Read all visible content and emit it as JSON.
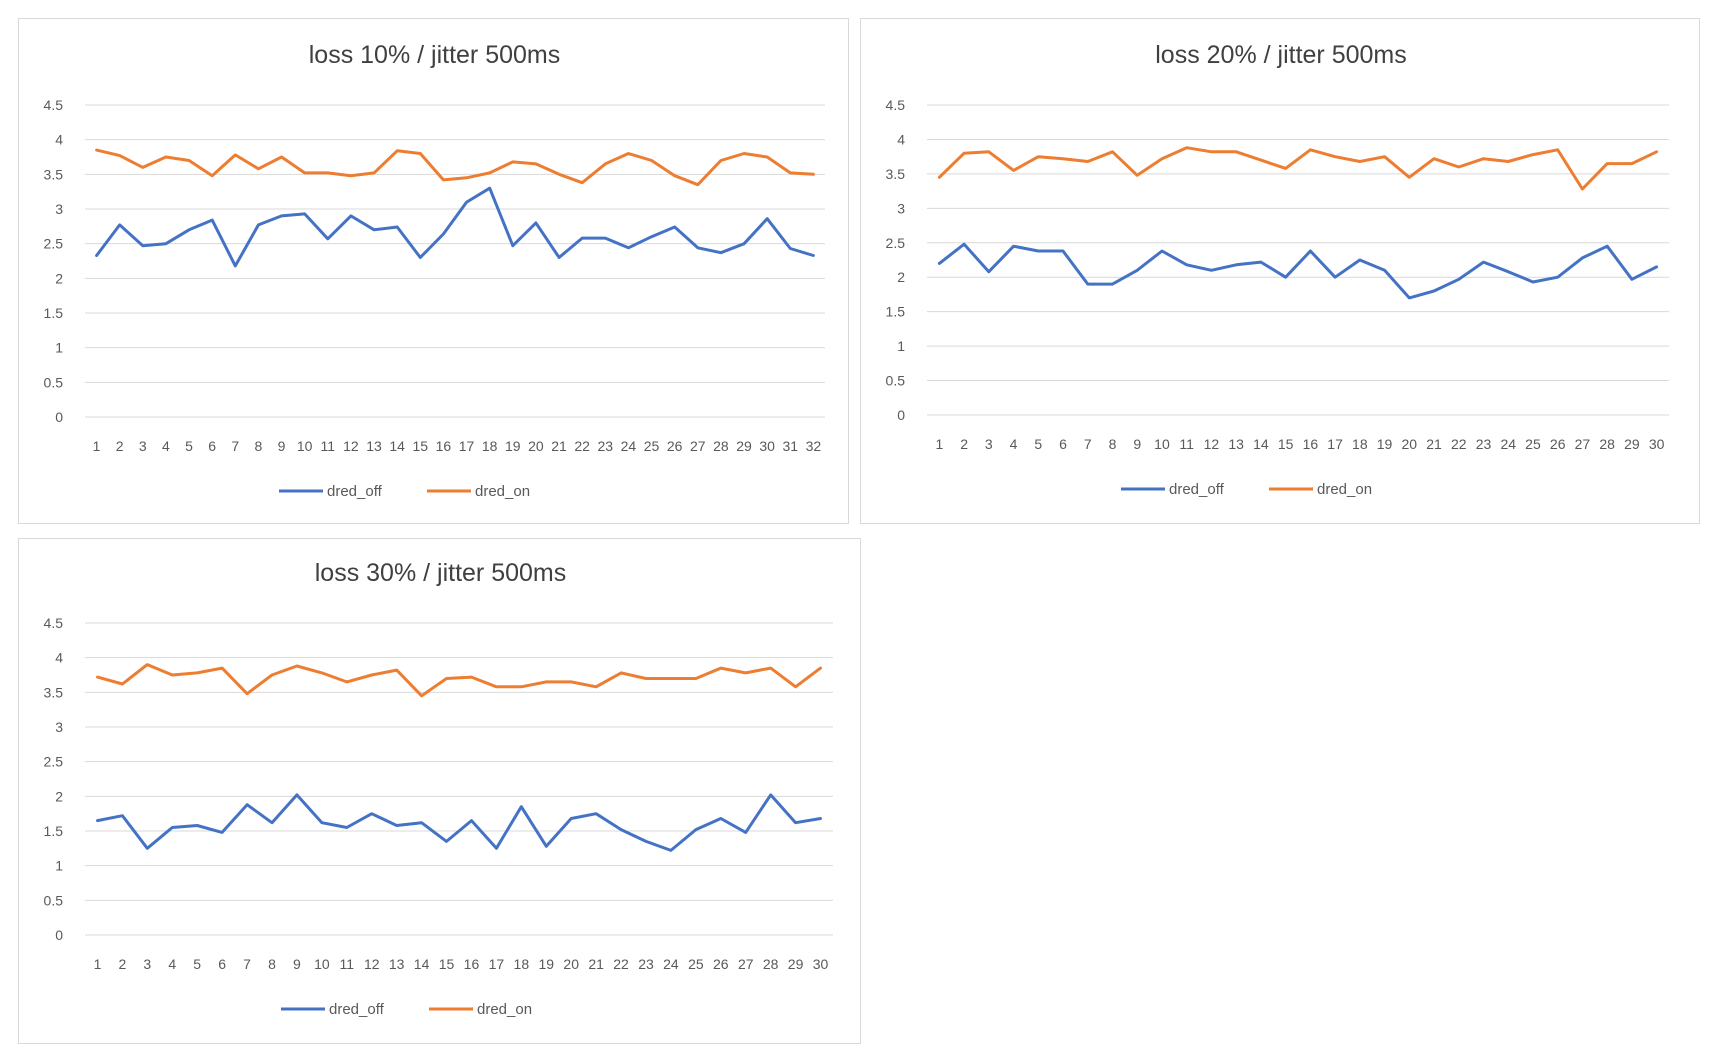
{
  "chart_data": [
    {
      "type": "line",
      "title": "loss 10% / jitter 500ms",
      "xlabel": "",
      "ylabel": "",
      "ylim": [
        0,
        4.5
      ],
      "yticks": [
        "0",
        "0.5",
        "1",
        "1.5",
        "2",
        "2.5",
        "3",
        "3.5",
        "4",
        "4.5"
      ],
      "categories": [
        "1",
        "2",
        "3",
        "4",
        "5",
        "6",
        "7",
        "8",
        "9",
        "10",
        "11",
        "12",
        "13",
        "14",
        "15",
        "16",
        "17",
        "18",
        "19",
        "20",
        "21",
        "22",
        "23",
        "24",
        "25",
        "26",
        "27",
        "28",
        "29",
        "30",
        "31",
        "32"
      ],
      "grid": true,
      "legend": "bottom",
      "series": [
        {
          "name": "dred_off",
          "color": "#4472C4",
          "values": [
            2.33,
            2.77,
            2.47,
            2.5,
            2.7,
            2.84,
            2.18,
            2.77,
            2.9,
            2.93,
            2.57,
            2.9,
            2.7,
            2.74,
            2.3,
            2.64,
            3.1,
            3.3,
            2.47,
            2.8,
            2.3,
            2.58,
            2.58,
            2.44,
            2.6,
            2.74,
            2.44,
            2.37,
            2.5,
            2.86,
            2.43,
            2.33
          ]
        },
        {
          "name": "dred_on",
          "color": "#ED7D31",
          "values": [
            3.85,
            3.77,
            3.6,
            3.75,
            3.7,
            3.48,
            3.78,
            3.58,
            3.75,
            3.52,
            3.52,
            3.48,
            3.52,
            3.84,
            3.8,
            3.42,
            3.45,
            3.52,
            3.68,
            3.65,
            3.5,
            3.38,
            3.65,
            3.8,
            3.7,
            3.48,
            3.35,
            3.7,
            3.8,
            3.75,
            3.52,
            3.5
          ]
        }
      ]
    },
    {
      "type": "line",
      "title": "loss 20% / jitter 500ms",
      "xlabel": "",
      "ylabel": "",
      "ylim": [
        0,
        4.5
      ],
      "yticks": [
        "0",
        "0.5",
        "1",
        "1.5",
        "2",
        "2.5",
        "3",
        "3.5",
        "4",
        "4.5"
      ],
      "categories": [
        "1",
        "2",
        "3",
        "4",
        "5",
        "6",
        "7",
        "8",
        "9",
        "10",
        "11",
        "12",
        "13",
        "14",
        "15",
        "16",
        "17",
        "18",
        "19",
        "20",
        "21",
        "22",
        "23",
        "24",
        "25",
        "26",
        "27",
        "28",
        "29",
        "30"
      ],
      "grid": true,
      "legend": "bottom",
      "series": [
        {
          "name": "dred_off",
          "color": "#4472C4",
          "values": [
            2.2,
            2.48,
            2.08,
            2.45,
            2.38,
            2.38,
            1.9,
            1.9,
            2.1,
            2.38,
            2.18,
            2.1,
            2.18,
            2.22,
            2.0,
            2.38,
            2.0,
            2.25,
            2.1,
            1.7,
            1.8,
            1.97,
            2.22,
            2.08,
            1.93,
            2.0,
            2.28,
            2.45,
            1.97,
            2.15
          ]
        },
        {
          "name": "dred_on",
          "color": "#ED7D31",
          "values": [
            3.45,
            3.8,
            3.82,
            3.55,
            3.75,
            3.72,
            3.68,
            3.82,
            3.48,
            3.72,
            3.88,
            3.82,
            3.82,
            3.7,
            3.58,
            3.85,
            3.75,
            3.68,
            3.75,
            3.45,
            3.72,
            3.6,
            3.72,
            3.68,
            3.78,
            3.85,
            3.28,
            3.65,
            3.65,
            3.82
          ]
        }
      ]
    },
    {
      "type": "line",
      "title": "loss 30% / jitter 500ms",
      "xlabel": "",
      "ylabel": "",
      "ylim": [
        0,
        4.5
      ],
      "yticks": [
        "0",
        "0.5",
        "1",
        "1.5",
        "2",
        "2.5",
        "3",
        "3.5",
        "4",
        "4.5"
      ],
      "categories": [
        "1",
        "2",
        "3",
        "4",
        "5",
        "6",
        "7",
        "8",
        "9",
        "10",
        "11",
        "12",
        "13",
        "14",
        "15",
        "16",
        "17",
        "18",
        "19",
        "20",
        "21",
        "22",
        "23",
        "24",
        "25",
        "26",
        "27",
        "28",
        "29",
        "30"
      ],
      "grid": true,
      "legend": "bottom",
      "series": [
        {
          "name": "dred_off",
          "color": "#4472C4",
          "values": [
            1.65,
            1.72,
            1.25,
            1.55,
            1.58,
            1.48,
            1.88,
            1.62,
            2.02,
            1.62,
            1.55,
            1.75,
            1.58,
            1.62,
            1.35,
            1.65,
            1.25,
            1.85,
            1.28,
            1.68,
            1.75,
            1.52,
            1.35,
            1.22,
            1.52,
            1.68,
            1.48,
            2.02,
            1.62,
            1.68
          ]
        },
        {
          "name": "dred_on",
          "color": "#ED7D31",
          "values": [
            3.72,
            3.62,
            3.9,
            3.75,
            3.78,
            3.85,
            3.48,
            3.75,
            3.88,
            3.78,
            3.65,
            3.75,
            3.82,
            3.45,
            3.7,
            3.72,
            3.58,
            3.58,
            3.65,
            3.65,
            3.58,
            3.78,
            3.7,
            3.7,
            3.7,
            3.85,
            3.78,
            3.85,
            3.58,
            3.85
          ]
        }
      ]
    }
  ]
}
